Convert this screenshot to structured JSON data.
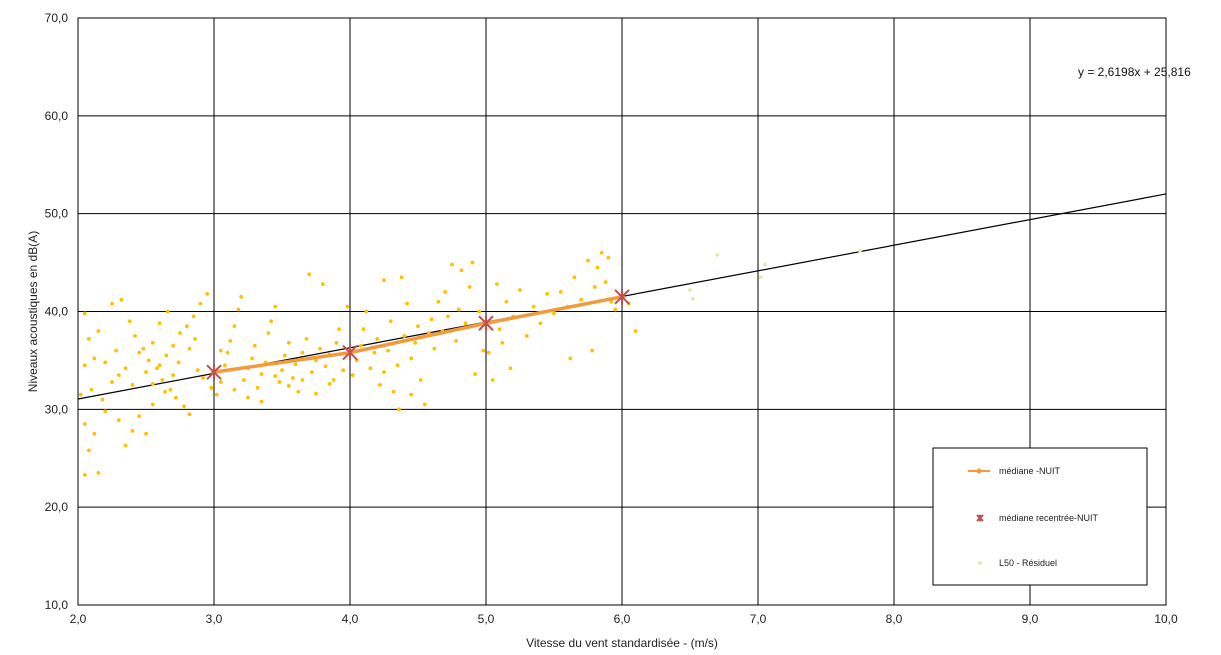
{
  "chart_data": {
    "type": "scatter",
    "xlabel": "Vitesse du vent standardisée - (m/s)",
    "ylabel": "Niveaux acoustiques en dB(A)",
    "xlim": [
      2.0,
      10.0
    ],
    "ylim": [
      10.0,
      70.0
    ],
    "x_ticks": [
      "2,0",
      "3,0",
      "4,0",
      "5,0",
      "6,0",
      "7,0",
      "8,0",
      "9,0",
      "10,0"
    ],
    "y_ticks": [
      "10,0",
      "20,0",
      "30,0",
      "40,0",
      "50,0",
      "60,0",
      "70,0"
    ],
    "grid": true,
    "legend_placement": "bottom-right",
    "trendline": {
      "equation": "y = 2,6198x + 25,816",
      "slope": 2.6198,
      "intercept": 25.816,
      "x_range": [
        2.0,
        10.0
      ]
    },
    "series": [
      {
        "name": "médiane -NUIT",
        "kind": "line",
        "color": "#f39a3a",
        "points": [
          [
            3.0,
            33.8
          ],
          [
            4.0,
            35.8
          ],
          [
            5.0,
            38.8
          ],
          [
            6.0,
            41.5
          ]
        ]
      },
      {
        "name": "médiane recentrée-NUIT",
        "kind": "marker",
        "color": "#c0504d",
        "points": [
          [
            3.0,
            33.8
          ],
          [
            4.0,
            35.8
          ],
          [
            5.0,
            38.8
          ],
          [
            6.0,
            41.5
          ]
        ]
      },
      {
        "name": "L50 - Résiduel",
        "kind": "scatter",
        "color": "#ffc000",
        "color_faint": "#d9f0a3",
        "points": [
          [
            2.05,
            23.3
          ],
          [
            2.15,
            23.5
          ],
          [
            2.08,
            25.8
          ],
          [
            2.12,
            27.5
          ],
          [
            2.05,
            28.5
          ],
          [
            2.2,
            29.8
          ],
          [
            2.3,
            28.9
          ],
          [
            2.35,
            26.3
          ],
          [
            2.4,
            27.8
          ],
          [
            2.5,
            27.5
          ],
          [
            2.45,
            29.3
          ],
          [
            2.55,
            30.5
          ],
          [
            2.02,
            31.5
          ],
          [
            2.1,
            32.0
          ],
          [
            2.18,
            31.0
          ],
          [
            2.25,
            32.8
          ],
          [
            2.3,
            33.5
          ],
          [
            2.05,
            34.5
          ],
          [
            2.12,
            35.2
          ],
          [
            2.2,
            34.8
          ],
          [
            2.28,
            36.0
          ],
          [
            2.08,
            37.2
          ],
          [
            2.15,
            38.0
          ],
          [
            2.05,
            39.8
          ],
          [
            2.25,
            40.8
          ],
          [
            2.32,
            41.2
          ],
          [
            2.38,
            39.0
          ],
          [
            2.42,
            37.5
          ],
          [
            2.48,
            36.2
          ],
          [
            2.52,
            35.0
          ],
          [
            2.58,
            34.2
          ],
          [
            2.62,
            33.0
          ],
          [
            2.68,
            32.0
          ],
          [
            2.72,
            31.2
          ],
          [
            2.78,
            30.3
          ],
          [
            2.82,
            29.5
          ],
          [
            2.5,
            33.8
          ],
          [
            2.55,
            32.6
          ],
          [
            2.6,
            34.5
          ],
          [
            2.65,
            35.5
          ],
          [
            2.7,
            36.5
          ],
          [
            2.75,
            37.8
          ],
          [
            2.8,
            38.5
          ],
          [
            2.85,
            39.5
          ],
          [
            2.9,
            40.8
          ],
          [
            2.95,
            41.8
          ],
          [
            2.88,
            34.0
          ],
          [
            2.92,
            33.2
          ],
          [
            2.98,
            32.2
          ],
          [
            2.4,
            32.5
          ],
          [
            2.35,
            34.2
          ],
          [
            2.45,
            35.8
          ],
          [
            2.55,
            36.8
          ],
          [
            2.6,
            38.8
          ],
          [
            2.66,
            40.0
          ],
          [
            2.74,
            34.8
          ],
          [
            2.82,
            36.2
          ],
          [
            2.86,
            37.2
          ],
          [
            2.7,
            33.5
          ],
          [
            2.64,
            31.8
          ],
          [
            3.02,
            31.5
          ],
          [
            3.05,
            32.8
          ],
          [
            3.08,
            34.5
          ],
          [
            3.1,
            35.8
          ],
          [
            3.12,
            37.0
          ],
          [
            3.15,
            38.5
          ],
          [
            3.18,
            40.2
          ],
          [
            3.2,
            41.5
          ],
          [
            3.22,
            33.0
          ],
          [
            3.25,
            34.2
          ],
          [
            3.28,
            35.2
          ],
          [
            3.3,
            36.5
          ],
          [
            3.32,
            32.2
          ],
          [
            3.35,
            33.6
          ],
          [
            3.38,
            34.8
          ],
          [
            3.4,
            37.8
          ],
          [
            3.42,
            39.0
          ],
          [
            3.45,
            40.5
          ],
          [
            3.48,
            32.8
          ],
          [
            3.5,
            34.0
          ],
          [
            3.52,
            35.5
          ],
          [
            3.55,
            36.8
          ],
          [
            3.58,
            33.2
          ],
          [
            3.6,
            34.6
          ],
          [
            3.62,
            31.8
          ],
          [
            3.65,
            35.8
          ],
          [
            3.68,
            37.2
          ],
          [
            3.7,
            43.8
          ],
          [
            3.72,
            33.8
          ],
          [
            3.75,
            35.0
          ],
          [
            3.78,
            36.2
          ],
          [
            3.8,
            42.8
          ],
          [
            3.82,
            34.4
          ],
          [
            3.85,
            35.6
          ],
          [
            3.88,
            33.0
          ],
          [
            3.9,
            36.8
          ],
          [
            3.92,
            38.2
          ],
          [
            3.95,
            34.0
          ],
          [
            3.98,
            40.5
          ],
          [
            3.15,
            32.0
          ],
          [
            3.25,
            31.2
          ],
          [
            3.35,
            30.8
          ],
          [
            3.05,
            36.0
          ],
          [
            3.45,
            33.4
          ],
          [
            3.55,
            32.4
          ],
          [
            3.65,
            33.0
          ],
          [
            3.75,
            31.6
          ],
          [
            3.85,
            32.6
          ],
          [
            4.02,
            33.5
          ],
          [
            4.05,
            35.0
          ],
          [
            4.08,
            36.5
          ],
          [
            4.1,
            38.2
          ],
          [
            4.12,
            40.0
          ],
          [
            4.15,
            34.2
          ],
          [
            4.18,
            35.8
          ],
          [
            4.2,
            37.2
          ],
          [
            4.22,
            32.5
          ],
          [
            4.25,
            33.8
          ],
          [
            4.28,
            36.0
          ],
          [
            4.3,
            39.0
          ],
          [
            4.32,
            31.8
          ],
          [
            4.35,
            34.5
          ],
          [
            4.38,
            43.5
          ],
          [
            4.4,
            37.5
          ],
          [
            4.42,
            40.8
          ],
          [
            4.45,
            35.2
          ],
          [
            4.48,
            36.8
          ],
          [
            4.5,
            38.5
          ],
          [
            4.52,
            33.0
          ],
          [
            4.55,
            30.5
          ],
          [
            4.58,
            37.8
          ],
          [
            4.6,
            39.2
          ],
          [
            4.62,
            36.2
          ],
          [
            4.65,
            41.0
          ],
          [
            4.68,
            38.0
          ],
          [
            4.7,
            42.0
          ],
          [
            4.72,
            39.5
          ],
          [
            4.75,
            44.8
          ],
          [
            4.78,
            37.0
          ],
          [
            4.8,
            40.2
          ],
          [
            4.82,
            44.2
          ],
          [
            4.85,
            38.8
          ],
          [
            4.88,
            42.5
          ],
          [
            4.9,
            45.0
          ],
          [
            4.92,
            33.6
          ],
          [
            4.95,
            40.0
          ],
          [
            4.98,
            36.0
          ],
          [
            4.36,
            30.0
          ],
          [
            4.45,
            31.5
          ],
          [
            4.25,
            43.2
          ],
          [
            5.02,
            35.8
          ],
          [
            5.05,
            33.0
          ],
          [
            5.08,
            42.8
          ],
          [
            5.1,
            38.2
          ],
          [
            5.12,
            36.8
          ],
          [
            5.15,
            41.0
          ],
          [
            5.18,
            34.2
          ],
          [
            5.2,
            39.5
          ],
          [
            5.25,
            42.2
          ],
          [
            5.3,
            37.5
          ],
          [
            5.35,
            40.5
          ],
          [
            5.4,
            38.8
          ],
          [
            5.45,
            41.8
          ],
          [
            5.5,
            39.8
          ],
          [
            5.55,
            42.0
          ],
          [
            5.6,
            40.5
          ],
          [
            5.62,
            35.2
          ],
          [
            5.65,
            43.5
          ],
          [
            5.7,
            41.2
          ],
          [
            5.75,
            45.2
          ],
          [
            5.78,
            36.0
          ],
          [
            5.8,
            42.5
          ],
          [
            5.82,
            44.5
          ],
          [
            5.85,
            46.0
          ],
          [
            5.88,
            43.0
          ],
          [
            5.9,
            45.5
          ],
          [
            5.92,
            41.0
          ],
          [
            5.95,
            40.2
          ],
          [
            6.05,
            40.8
          ],
          [
            6.1,
            38.0
          ],
          [
            6.5,
            42.2
          ],
          [
            6.52,
            41.3
          ],
          [
            6.7,
            45.8
          ],
          [
            7.02,
            43.5
          ],
          [
            7.05,
            44.8
          ],
          [
            7.75,
            46.2
          ]
        ]
      }
    ]
  }
}
